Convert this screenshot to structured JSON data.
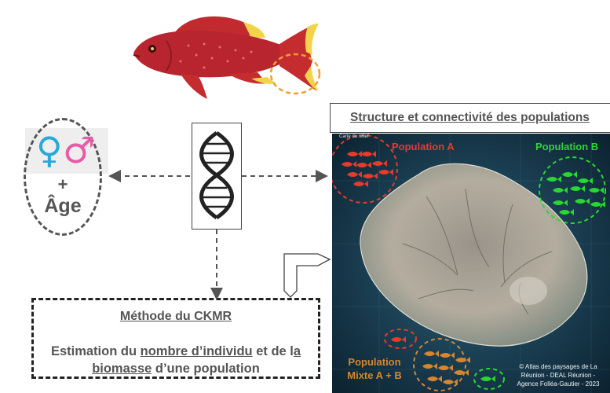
{
  "left_panel": {
    "female_symbol": "♀",
    "male_symbol": "♂",
    "plus": "+",
    "age_label": "Âge"
  },
  "ckmr": {
    "title": "Méthode du CKMR",
    "desc_part1": "Estimation du ",
    "desc_underline1": "nombre d’individu",
    "desc_part2": " et de l",
    "desc_underline2": "a",
    "desc_underline3": "biomasse",
    "desc_part3": " d’une population"
  },
  "structure": {
    "title": "Structure et connectivité des populations"
  },
  "map": {
    "caption": "Carte du relief",
    "pop_a_label": "Population A",
    "pop_b_label": "Population B",
    "pop_mix_line1": "Population",
    "pop_mix_line2": "Mixte A + B",
    "copyright_line1": "© Atlas des paysages de La",
    "copyright_line2": "Réunion - DEAL Réunion -",
    "copyright_line3": "Agence Folléa-Gautier - 2023"
  },
  "colors": {
    "pop_a": "#e83a2a",
    "pop_b": "#28d830",
    "pop_mix": "#d5862e",
    "female": "#2aa8d8",
    "male": "#e85aa6",
    "fish_body": "#b8252e",
    "fish_fin": "#f2d44a",
    "tail_highlight": "#f0a030"
  },
  "icons": [
    "fish-illustration",
    "dna-helix-icon",
    "fish-icon",
    "elbow-arrow-icon"
  ]
}
